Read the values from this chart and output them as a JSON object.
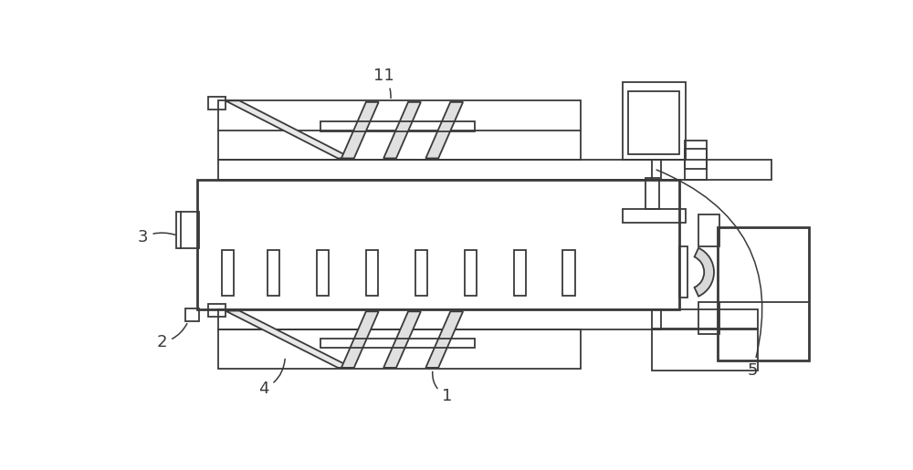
{
  "bg": "#ffffff",
  "lc": "#3a3a3a",
  "lw": 1.3,
  "tlw": 2.0,
  "fig_w": 10.0,
  "fig_h": 5.15,
  "dpi": 100
}
